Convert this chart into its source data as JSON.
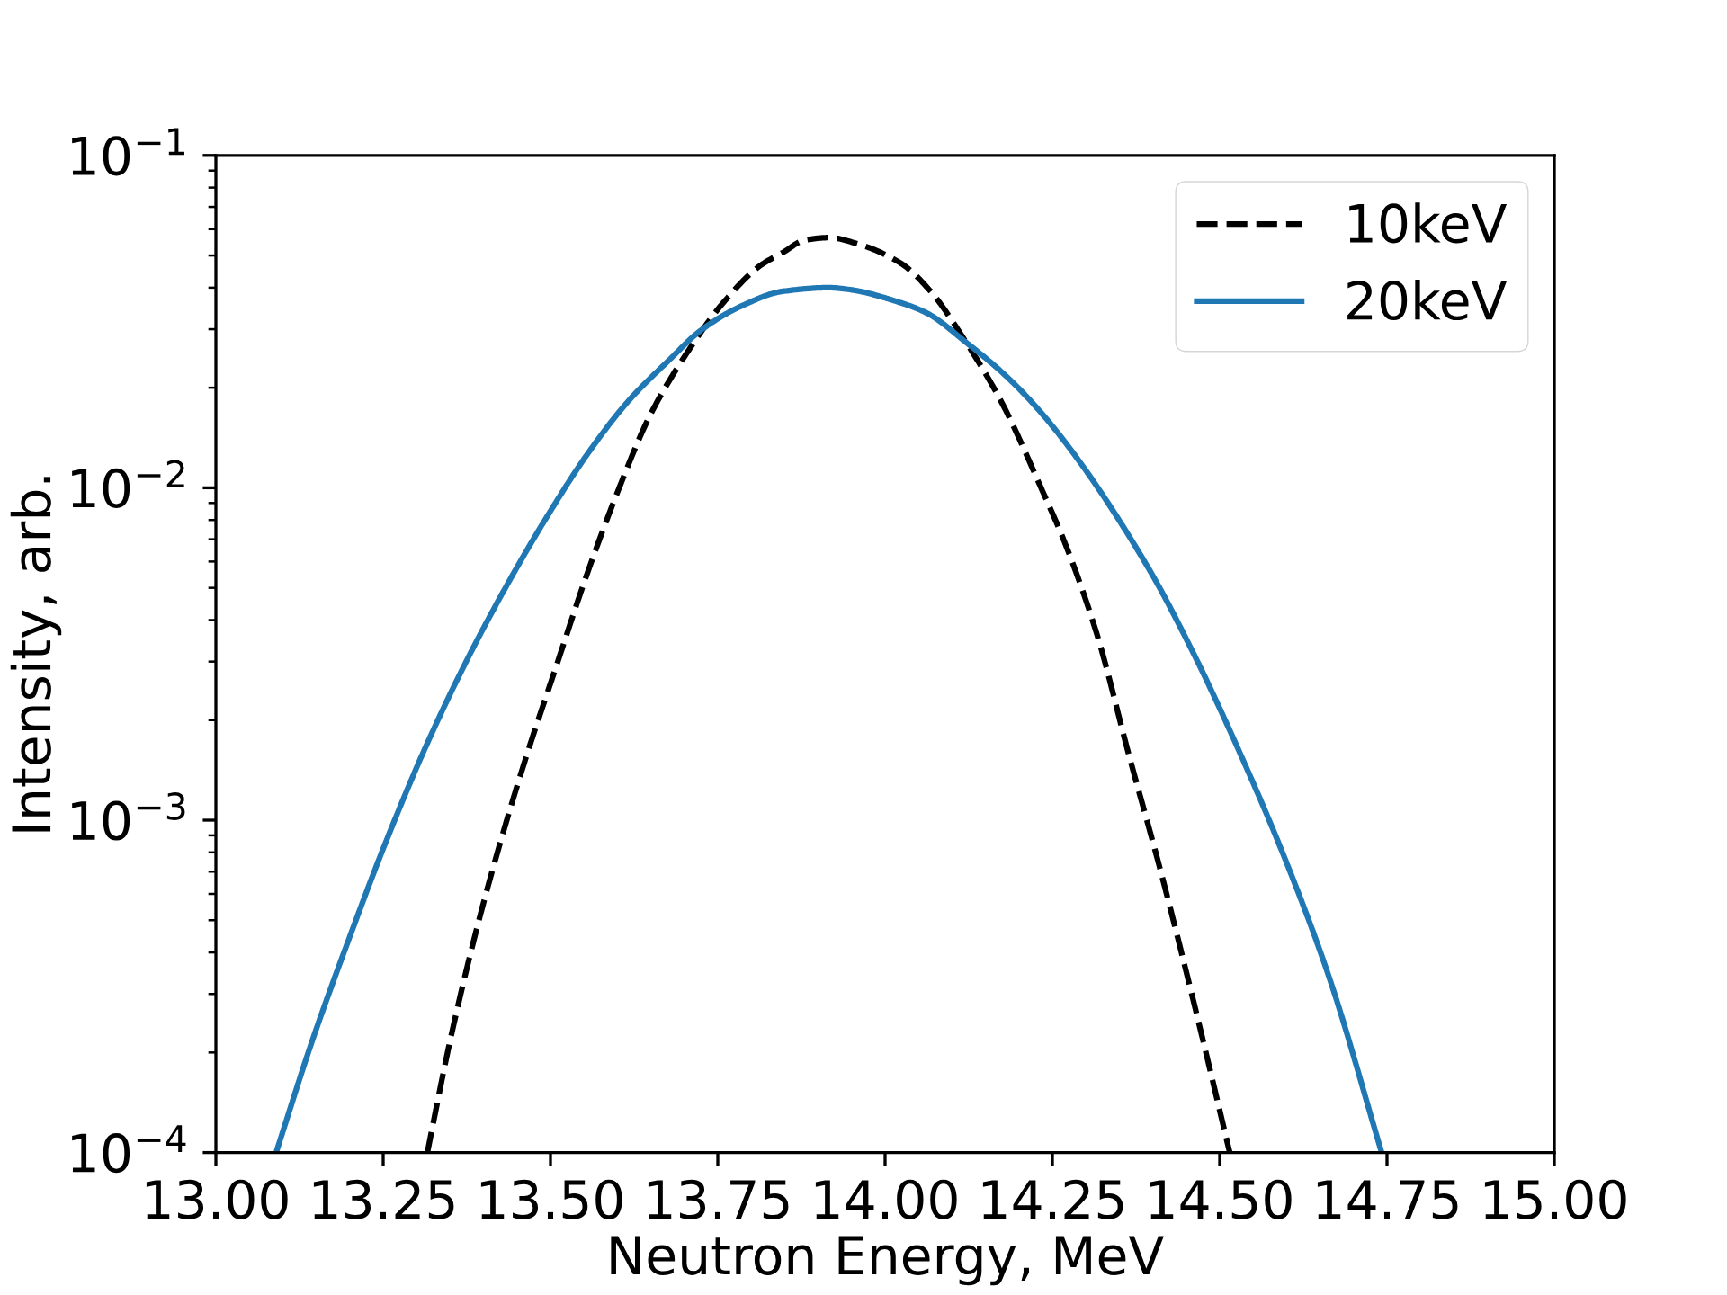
{
  "chart_data": {
    "type": "line",
    "xlabel": "Neutron Energy, MeV",
    "ylabel": "Intensity, arb.",
    "log": "y",
    "grid": false,
    "legend": "top right",
    "xlim": [
      13,
      15
    ],
    "ylim": [
      0.0001,
      0.1
    ],
    "xticks": [
      {
        "value": 13,
        "label": "13.00"
      },
      {
        "value": 13.25,
        "label": "13.25"
      },
      {
        "value": 13.5,
        "label": "13.50"
      },
      {
        "value": 13.75,
        "label": "13.75"
      },
      {
        "value": 14,
        "label": "14.00"
      },
      {
        "value": 14.25,
        "label": "14.25"
      },
      {
        "value": 14.5,
        "label": "14.50"
      },
      {
        "value": 14.75,
        "label": "14.75"
      },
      {
        "value": 15,
        "label": "15.00"
      }
    ],
    "yticks": [
      {
        "value": 0.0001,
        "label": "10$^{−4}$"
      },
      {
        "value": 0.001,
        "label": "10$^{−3}$"
      },
      {
        "value": 0.01,
        "label": "10$^{−2}$"
      },
      {
        "value": 0.1,
        "label": "10$^{−1}$"
      }
    ],
    "series": [
      {
        "name": "10keV",
        "color": "#000000",
        "line_style": "dashed",
        "x": [
          13.316,
          13.35,
          13.386,
          13.423,
          13.465,
          13.507,
          13.556,
          13.601,
          13.648,
          13.703,
          13.759,
          13.814,
          13.847,
          13.88,
          13.917,
          13.955,
          14.024,
          14.068,
          14.118,
          14.174,
          14.235,
          14.269,
          14.317,
          14.364,
          14.412,
          14.46,
          14.515
        ],
        "values": [
          0.0001,
          0.000217,
          0.00044,
          0.00083,
          0.00158,
          0.00284,
          0.0056,
          0.0098,
          0.0164,
          0.0253,
          0.0362,
          0.0467,
          0.051,
          0.0556,
          0.0566,
          0.0545,
          0.0473,
          0.039,
          0.028,
          0.0181,
          0.0098,
          0.0068,
          0.0036,
          0.00158,
          0.0007,
          0.00029,
          0.0001
        ]
      },
      {
        "name": "20keV",
        "color": "#1f77b4",
        "line_style": "solid",
        "x": [
          13.09,
          13.144,
          13.199,
          13.253,
          13.314,
          13.374,
          13.435,
          13.495,
          13.556,
          13.616,
          13.677,
          13.725,
          13.785,
          13.847,
          13.916,
          13.942,
          14.024,
          14.063,
          14.118,
          14.187,
          14.255,
          14.392,
          14.46,
          14.528,
          14.597,
          14.665,
          14.742
        ],
        "values": [
          0.0001,
          0.000217,
          0.00044,
          0.00085,
          0.00167,
          0.003,
          0.0051,
          0.0082,
          0.0127,
          0.0182,
          0.0242,
          0.0298,
          0.0352,
          0.039,
          0.04,
          0.0396,
          0.036,
          0.0335,
          0.0277,
          0.0211,
          0.0149,
          0.0058,
          0.0032,
          0.00163,
          0.00077,
          0.00033,
          0.0001
        ]
      }
    ]
  }
}
